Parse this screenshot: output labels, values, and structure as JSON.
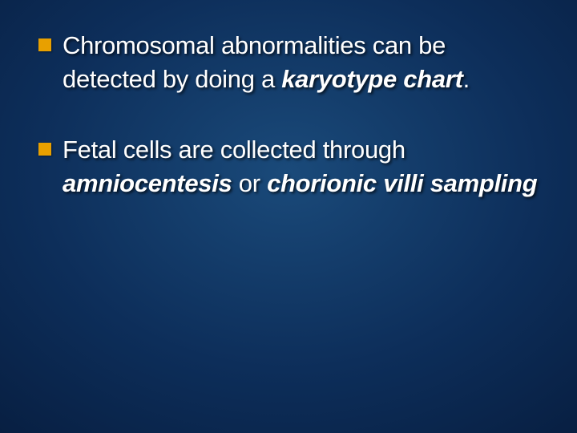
{
  "slide": {
    "background": {
      "gradient_center_color": "#1a4a7a",
      "gradient_mid_color": "#0d2e5a",
      "gradient_outer_color": "#061a3a",
      "gradient_edge_color": "#030d1f"
    },
    "bullet_marker_color": "#e8a000",
    "text_color": "#ffffff",
    "body_fontsize": 31,
    "bullets": [
      {
        "prefix": "Chromosomal abnormalities can be detected by doing a ",
        "bold_italic_part": "karyotype chart",
        "suffix": "."
      },
      {
        "prefix": "Fetal cells are collected through ",
        "bold_italic_part_1": "amniocentesis",
        "mid": " or ",
        "bold_italic_part_2": "chorionic villi sampling"
      }
    ]
  }
}
